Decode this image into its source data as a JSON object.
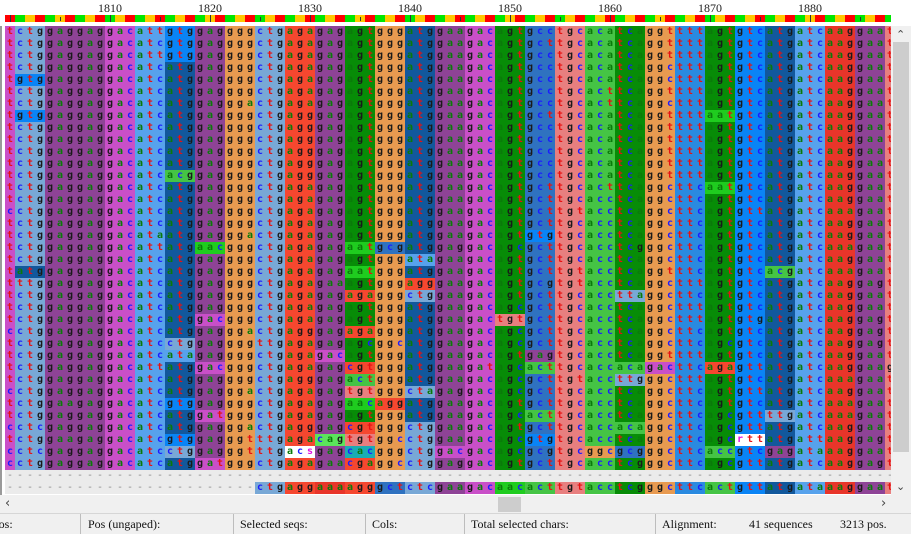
{
  "ruler": {
    "first_position": 1800,
    "labels": [
      "1810",
      "1820",
      "1830",
      "1840",
      "1850",
      "1860",
      "1870",
      "1880"
    ],
    "strip_colors": [
      "#ff0000",
      "#00e600",
      "#ffc800"
    ]
  },
  "letter_colors": {
    "a": "#0a7a0a",
    "c": "#1a1aff",
    "g": "#1a1a1a",
    "t": "#e81010",
    "other": "#e010e0",
    "gap": "#8a8a8a"
  },
  "amino_acid_colors": {
    "A": "#2f72c0",
    "C": "#e87f7f",
    "D": "#c94fc8",
    "E": "#8e4396",
    "F": "#2a8ae0",
    "G": "#e89a50",
    "H": "#1aacb4",
    "I": "#57a2ec",
    "K": "#e8352a",
    "R": "#f5472f",
    "L": "#78a8d6",
    "M": "#12589c",
    "N": "#1fcc1f",
    "P": "#e8e030",
    "Q": "#5be45b",
    "S": "#078c07",
    "T": "#45c445",
    "V": "#0a84f5",
    "W": "#a0a0a0",
    "Y": "#40b0a0",
    "*": "#777777",
    "ambiguous": "#ffffff"
  },
  "partial_codon_colors": {
    "leading": "#c94fc8",
    "trailing": "#e87f7f"
  },
  "sequences": [
    "t ctg gaggag gac att gtg gag ggg ctg aga gag agt ggg atg gaa gac agt gcc tgc aca tca ggt ttt agt gtc atg atc aag gaa t",
    "t ctg gaggag gac atc gtg gag ggg ctg aga gag agt ggg atg gaa gac agt gct tgc aca tca ggt ttt agt gtc atg atc aag gaa t",
    "t ctg gaggag gac att gtg gag ggg ctg aga gag agt ggg atg gaa gac agt gcc tgc aca tca ggt ttt agt gtc atg atc aag gaa t",
    "t ctg gaggag gac atc atg gag ggg ctg aga gag agt ggg atg gaa gac agt gcc tgc aca tca ggc ttt agt gtc atg atc aag gaa t",
    "t gtg gaggag gac atc atg gag ggg ctg aga gag agt ggg atg gaa gac agt gcc tgc aca tca ggc ttt agt gtc atg atc aag gaa t",
    "t ctg gaggag gac atc atg gag ggg ctg aga gag agt ggg atg gaa gac agt gcc tgc act tca ggt ttt agt gtc atg atc aag gaa t",
    "t ctg gaggag gac atc atg gag gga ctg aga gag agt ggg atg gaa gac agt gcc tgc act tca ggc ttt agt gtc atg atc aag gaa t",
    "t gtg gaggag gac atc atg gag ggg ctg agg gag agt ggg atg gaa gac agt gct tgc aca tca ggt ttt aat gtc atg atc aag gaa t",
    "t ctg gaggag gac atc atg gag ggg ctg agg gag agt ggg atg gaa gac agt gcc tgc aca tca ggt ttt agt gtc atg atc aag gaa t",
    "t ctg gaggag gac atc atg gag ggg ctg agg gag agt ggg atg gaa gac agt gcc tgc aca tca ggt ttt agt gtc atg atc aag gaa t",
    "t ctg gaggag gac atc atg gag ggg ctg agg gag agt ggg atg gaa gac agt gcc tgc aca tca ggt ttt agt gtc atg atc aag gaa t",
    "t ctg gaggag gac atc atg gag ggg ctg agg gag agt ggg atg gaa gac agt gcc tgc aca tca ggt ttt agt gtc atg atc aag gaa t",
    "t ctg gaggag gac atc acg gag ggg ctg agg gag agt ggg atg gaa gac agt gcc tgc aca tca ggt ttt agt gtc atg atc aag gaa t",
    "t ctg gaggag gac atc atg gag ggg ctg aga gag agt ggg atg gaa gac agt gct tgc act tca ggc ttc aat gtc atg atc aag gaa t",
    "t ctg gaggag gac atc atg gag ggg ctg aga gag agt ggg atg gaa gac agt gct tgc acc tca ggc ttc agt gtc atg atc aag gaa t",
    "c ctg gaggag gac atc atg gag ggg ctg aga gag agt ggg atg gaa gac agt gct tgt acc tca ggc ttc agt gtt atg atc aaa gaa t",
    "t ctg gaggag gac atc atg gag ggg ctg aga gag agt ggg atg gaa gac agt gct tgc acc tca ggc ttc agt gtc atg atc aag gaa t",
    "t ctg gaggag gac ata atg gag gga ctg aga gag agt ggg atg gaa gac agt gtg tgc acc tca ggc ttc agt gtc atg atc aag gaa t",
    "t ctg gaggag gac att atg aac ggg ctg aga gag aat gcg atg gag gac agc gct tgc acc tcg ggc ttc agt gtc atg atc aaa gaa t",
    "t ctg gaggag gac atc atg gag ggg ctg aga gag agt ggg ata gaa gac agt gct tgc acc tca ggc ttc agt gtc atg atc aag gaa t",
    "t atg gaggag gac atc atg gag ggg ctg aga gag aat ggg atg gaa gac agt gct tgt acc tca ggt ttc agt gtc acg atc aaa gaa t",
    "t ttg gaggag gac atc atg gag ggg ctg aga gaa agt ggg agg gaa gac agt gcg tgt acc tca ggc ttt agt gtc atg atc aag gag t",
    "t ctg gaggag gac atc atg gag ggg ctg aga gag aga ggg ctg gaa gac agt gct tgc acc tta ggc ttc agt gtc atg atc aag gaa t",
    "t ctg gaggag gac atc atg gag ggg ctg aga gag agt ggg atg gaa gac agc gct tgc acc tca ggc ttt agt gtc atg atc aag gaa t",
    "t ctg gaggag gac atc atg gac ggg ctg aga gag agt ggg atg gaa gac tgt gct tgc acc tca ggc ttt agt gtg atg atc aag gag t",
    "c ctg gaggag gac atc atg gag gga ctg agg gag aga ggg atg gaa gac agc gct tgc acc tca ggc ttc agt gtc atg atc aag gag t",
    "t ctg gaggag gac atc ctg gag ggg ttg aga gag agc ggc atg gaa gac agc gct tgc acc tca ggc ttc agc gtc atg atc aag gag t",
    "t ctg gaggag gac atc ata gag ggg ctg aga gac agt ggg atg gaa gac agt gag tgc acc tca ggt ttt agt gtc atg atc aag gaa t",
    "t ctg gaggag gac att atg gac ggg ctg aga gag cgt ggg atg gaa gat agc act tgc acc aca gac ttc aga gtt atg atc aag gaa g",
    "t ctg gaggag gac atc atg gag ggg ctg agg gag act ggg atg gaa gac agc gct tgt acc ttg ggc ttt agt gtc atg atc aaa gaa t",
    "c ctg gaggag gac atc atg gag gga ctg aga gag tgt ggg cta gag gac agc gct tgc acc tca ggc ttc agt gtt atg atc aag gaa t",
    "t ctg gaagag gac atc gtg gag ggg ctg aga gag aac agg atg gaa gac agt gct tgc acc tca ggc ttc agt gtc atg atc aaa gaa t",
    "t ctg gaggag gac atc atg gat ggg ctg aga gag agt ggg atg gaa gac agc act tgc acc tca ggc ttc agc gtt ttg atc aaa gaa t",
    "c ctc gaggag gac atc atg gag gga ctg agg gag cgt ggg ctg gaa gac agt gct tgc acc aca ggc ttc agc gtt atg atc aag gaa t",
    "t ctg gaagag gac atc gtg gag ggt ttg aga cag tgt ggc ctg gaa gac agc gtg tgc acc tca ggc ttc agc rtt atg att aag gag t",
    "c ctc gaggag gac atc ctg gag ggt ttg acs gag cac ggg ctg gac gac agc gcg tgc ggc gcg ggc ttc acc gtc gag ata aag gaa t",
    "c ctg gaggag gac atc atg gat ggg ctg aga gaa cga ggc ctg gag gac agt gct tgc acc tcg ggc ttc agc gtt atg atc aag gag t"
  ],
  "gap_row": "- --- ------ --- --- --- --- --- --- --- --- --- --- --- --- --- --- --- --- --- --- --- --- --- --- --- --- --- --- -",
  "bottom_row": "- --- ------ --- --- --- --- --- ctg agg aaa agg gct ctc gaa gac aac act tgt acc tcg ggc ttc act gtt atg ata aag gaa t",
  "status": {
    "pos": "Pos:",
    "pos_ungaped": "Pos (ungaped):",
    "selected_seqs": "Selected seqs:",
    "cols": "Cols:",
    "total_selected_chars": "Total selected chars:",
    "alignment_label": "Alignment:",
    "sequences": "41 sequences",
    "positions": "3213 pos."
  },
  "scrollbars": {
    "up_icon": "chevron-up-icon",
    "down_icon": "chevron-down-icon",
    "left_icon": "chevron-left-icon",
    "right_icon": "chevron-right-icon",
    "horizontal_position_fraction": 0.56,
    "vertical_position_fraction": 0.0
  }
}
